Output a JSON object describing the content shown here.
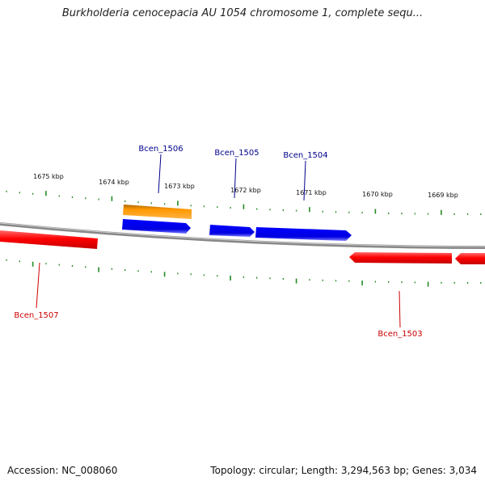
{
  "title": "Burkholderia cenocepacia AU 1054 chromosome 1, complete sequ...",
  "kbp_labels": [
    "1675 kbp",
    "1674 kbp",
    "1673 kbp",
    "1672 kbp",
    "1671 kbp",
    "1670 kbp",
    "1669 kbp"
  ],
  "genes": [
    {
      "name": "Bcen_1507",
      "strand": "reverse",
      "type": "CDS"
    },
    {
      "name": "Bcen_1506",
      "strand": "forward",
      "type": "pseudogene"
    },
    {
      "name": "Bcen_1505",
      "strand": "forward",
      "type": "CDS"
    },
    {
      "name": "Bcen_1504",
      "strand": "forward",
      "type": "CDS"
    },
    {
      "name": "Bcen_1503",
      "strand": "reverse",
      "type": "CDS"
    }
  ],
  "colors": {
    "forward": "#0000ee",
    "reverse": "#ff0000",
    "pseudogene": "#ff9900",
    "backbone": "#888888",
    "ticks": "#228b22"
  },
  "footer": {
    "accession": "Accession: NC_008060",
    "summary": "Topology: circular; Length: 3,294,563 bp; Genes: 3,034"
  }
}
